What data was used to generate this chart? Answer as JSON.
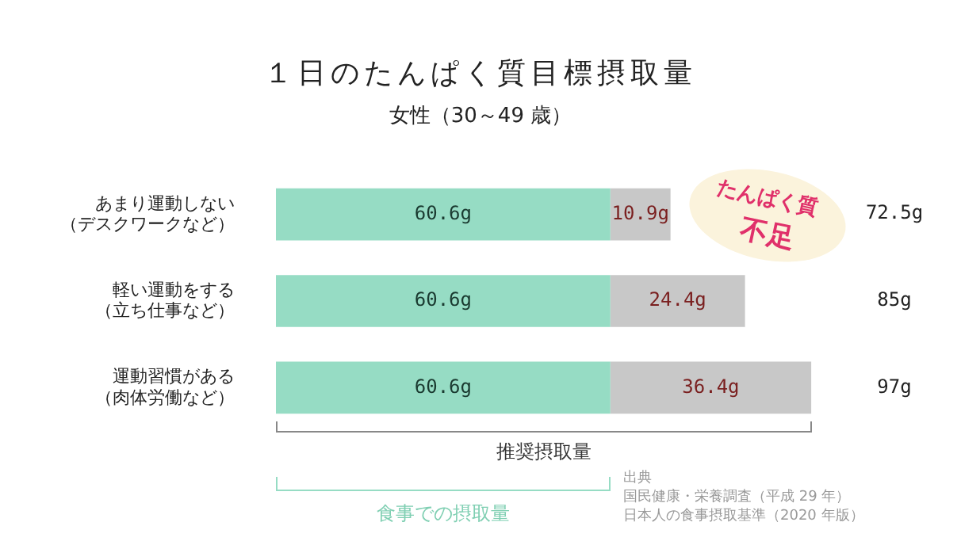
{
  "chart_data": {
    "type": "bar",
    "orientation": "horizontal",
    "stacked": true,
    "title": "１日のたんぱく質目標摂取量",
    "subtitle": "女性（30～49 歳）",
    "categories": [
      "あまり運動しない（デスクワークなど）",
      "軽い運動をする（立ち仕事など）",
      "運動習慣がある（肉体労働など）"
    ],
    "series": [
      {
        "color": "#96dcc4",
        "values": [
          60.6,
          60.6,
          60.6
        ],
        "value_labels": [
          "60.6g",
          "60.6g",
          "60.6g"
        ]
      },
      {
        "color": "#c8c8c8",
        "values": [
          10.9,
          24.4,
          36.4
        ],
        "value_labels": [
          "10.9g",
          "24.4g",
          "36.4g"
        ]
      }
    ],
    "annotations": [
      "推奨摂取量",
      "食事での摂取量",
      "たんぱく質",
      "不足",
      "出典",
      "国民健康・栄養調査（平成 29 年）",
      "日本人の食事摂取基準（2020 年版）",
      "72.5g",
      "85g",
      "97g"
    ],
    "legend": false,
    "tick_labels": "y"
  }
}
